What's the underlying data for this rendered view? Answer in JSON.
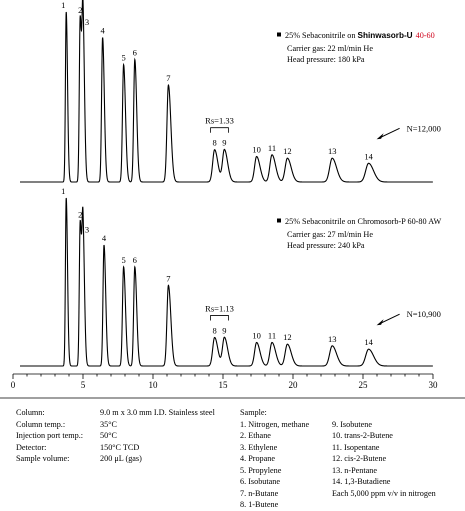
{
  "chart_data": {
    "type": "line",
    "x_axis": {
      "range": [
        0,
        30
      ],
      "ticks": [
        0,
        5,
        10,
        15,
        20,
        25,
        30
      ]
    },
    "panels": [
      {
        "column_prefix": "25% Sebaconitrile on ",
        "column_brand": "Shinwasorb-U",
        "column_mesh": "40-60",
        "carrier_gas": "Carrier gas: 22 ml/min He",
        "head_pressure": "Head pressure:  180 kPa",
        "resolution_label": "Rs=1.33",
        "plate_label": "N=12,000",
        "peaks": [
          {
            "label": "1",
            "rt": 3.8,
            "height": 1.0,
            "width": 0.07
          },
          {
            "label": "2",
            "rt": 4.8,
            "height": 0.97,
            "width": 0.08
          },
          {
            "label": "3",
            "rt": 5.0,
            "height": 0.9,
            "width": 0.08
          },
          {
            "label": "4",
            "rt": 6.4,
            "height": 0.85,
            "width": 0.09
          },
          {
            "label": "5",
            "rt": 7.9,
            "height": 0.69,
            "width": 0.1
          },
          {
            "label": "6",
            "rt": 8.7,
            "height": 0.72,
            "width": 0.1
          },
          {
            "label": "7",
            "rt": 11.1,
            "height": 0.57,
            "width": 0.13
          },
          {
            "label": "8",
            "rt": 14.4,
            "height": 0.19,
            "width": 0.17
          },
          {
            "label": "9",
            "rt": 15.1,
            "height": 0.19,
            "width": 0.17
          },
          {
            "label": "10",
            "rt": 17.4,
            "height": 0.15,
            "width": 0.18
          },
          {
            "label": "11",
            "rt": 18.5,
            "height": 0.16,
            "width": 0.19
          },
          {
            "label": "12",
            "rt": 19.6,
            "height": 0.14,
            "width": 0.2
          },
          {
            "label": "13",
            "rt": 22.8,
            "height": 0.14,
            "width": 0.23
          },
          {
            "label": "14",
            "rt": 25.4,
            "height": 0.11,
            "width": 0.26
          }
        ]
      },
      {
        "column_prefix": "25% Sebaconitrile on Chromosorb-P 60-80 AW",
        "column_brand": "",
        "column_mesh": "",
        "carrier_gas": "Carrier gas: 27 ml/min He",
        "head_pressure": "Head pressure:  240 kPa",
        "resolution_label": "Rs=1.13",
        "plate_label": "N=10,900",
        "peaks": [
          {
            "label": "1",
            "rt": 3.8,
            "height": 1.0,
            "width": 0.07
          },
          {
            "label": "2",
            "rt": 4.8,
            "height": 0.86,
            "width": 0.08
          },
          {
            "label": "3",
            "rt": 5.0,
            "height": 0.77,
            "width": 0.08
          },
          {
            "label": "4",
            "rt": 6.5,
            "height": 0.72,
            "width": 0.09
          },
          {
            "label": "5",
            "rt": 7.9,
            "height": 0.59,
            "width": 0.1
          },
          {
            "label": "6",
            "rt": 8.7,
            "height": 0.59,
            "width": 0.1
          },
          {
            "label": "7",
            "rt": 11.1,
            "height": 0.48,
            "width": 0.13
          },
          {
            "label": "8",
            "rt": 14.4,
            "height": 0.17,
            "width": 0.17
          },
          {
            "label": "9",
            "rt": 15.1,
            "height": 0.17,
            "width": 0.17
          },
          {
            "label": "10",
            "rt": 17.4,
            "height": 0.14,
            "width": 0.18
          },
          {
            "label": "11",
            "rt": 18.5,
            "height": 0.14,
            "width": 0.19
          },
          {
            "label": "12",
            "rt": 19.6,
            "height": 0.13,
            "width": 0.2
          },
          {
            "label": "13",
            "rt": 22.8,
            "height": 0.12,
            "width": 0.23
          },
          {
            "label": "14",
            "rt": 25.4,
            "height": 0.1,
            "width": 0.26
          }
        ]
      }
    ],
    "colors": {
      "line": "#000000",
      "mesh_highlight": "#d0021b"
    }
  },
  "conditions": [
    {
      "label": "Column:",
      "value": "9.0 m x 3.0 mm I.D. Stainless steel"
    },
    {
      "label": "Column temp.:",
      "value": "35°C"
    },
    {
      "label": "Injection port temp.:",
      "value": "50°C"
    },
    {
      "label": "Detector:",
      "value": "150°C TCD"
    },
    {
      "label": "Sample volume:",
      "value": "200 μL (gas)"
    }
  ],
  "sample": {
    "title": "Sample:",
    "col1": [
      "1. Nitrogen, methane",
      "2. Ethane",
      "3. Ethylene",
      "4. Propane",
      "5. Propylene",
      "6. Isobutane",
      "7. n-Butane",
      "8. 1-Butene"
    ],
    "col2": [
      "9.  Isobutene",
      "10. trans-2-Butene",
      "11. Isopentane",
      "12. cis-2-Butene",
      "13. n-Pentane",
      "14. 1,3-Butadiene",
      "Each 5,000 ppm v/v in nitrogen"
    ]
  }
}
